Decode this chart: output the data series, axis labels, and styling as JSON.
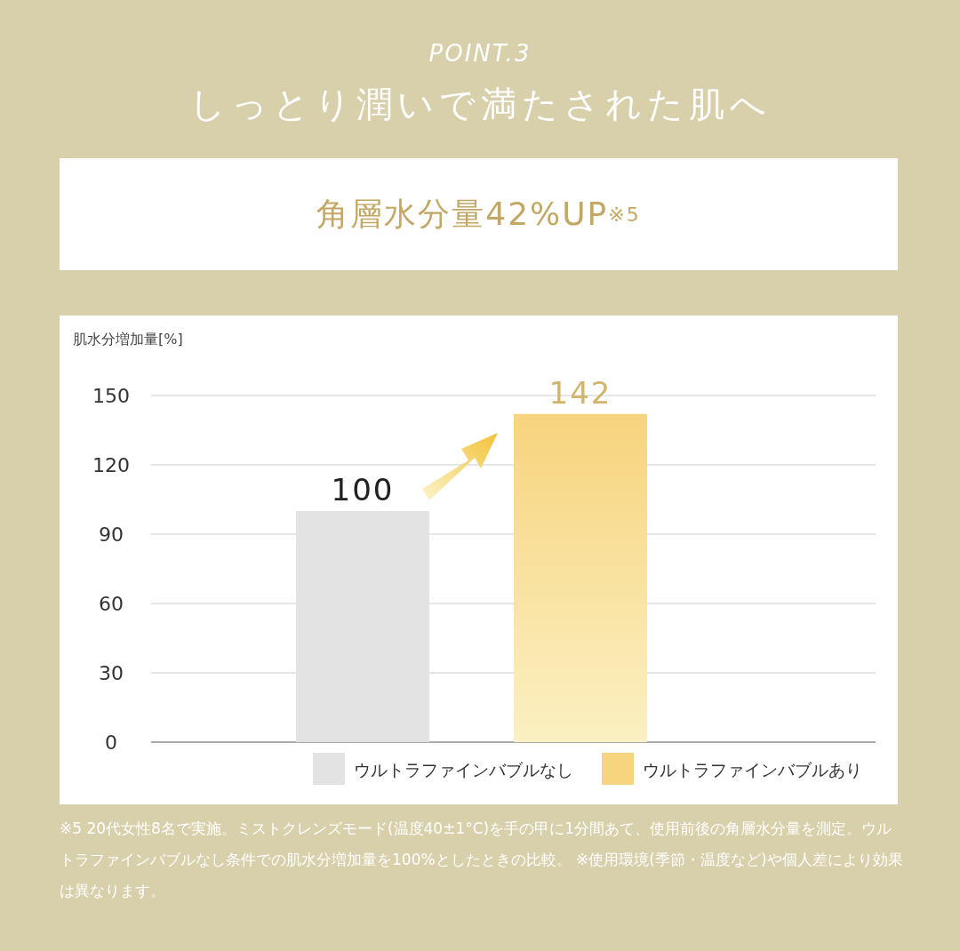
{
  "chart_data": {
    "type": "bar",
    "title": "POINT.3",
    "subtitle": "しっとり潤いで満たされた肌へ",
    "annotations": [
      "角層水分量42%UP※5",
      "※5 20代女性8名で実施。ミストクレンズモード(温度40±1°C)を手の甲に1分間あて、使用前後の角層水分量を測定。ウルトラファインバブルなし条件での肌水分増加量を100%としたときの比較。",
      "※使用環境(季節・温度など)や個人差により効果は異なります。"
    ],
    "ylabel": "肌水分増加量[%]",
    "categories": [
      null,
      null
    ],
    "series": [
      {
        "name": "ウルトラファインバブルなし",
        "color": "#e3e3e3",
        "values": [
          100,
          null
        ]
      },
      {
        "name": "ウルトラファインバブルあり",
        "color": "#f7d47e",
        "values": [
          null,
          142
        ]
      }
    ],
    "ylim": [
      0,
      150
    ],
    "yticks": [
      0,
      30,
      60,
      90,
      120,
      150
    ],
    "grid": "y",
    "data_labels": true,
    "legend": "bottom right"
  }
}
